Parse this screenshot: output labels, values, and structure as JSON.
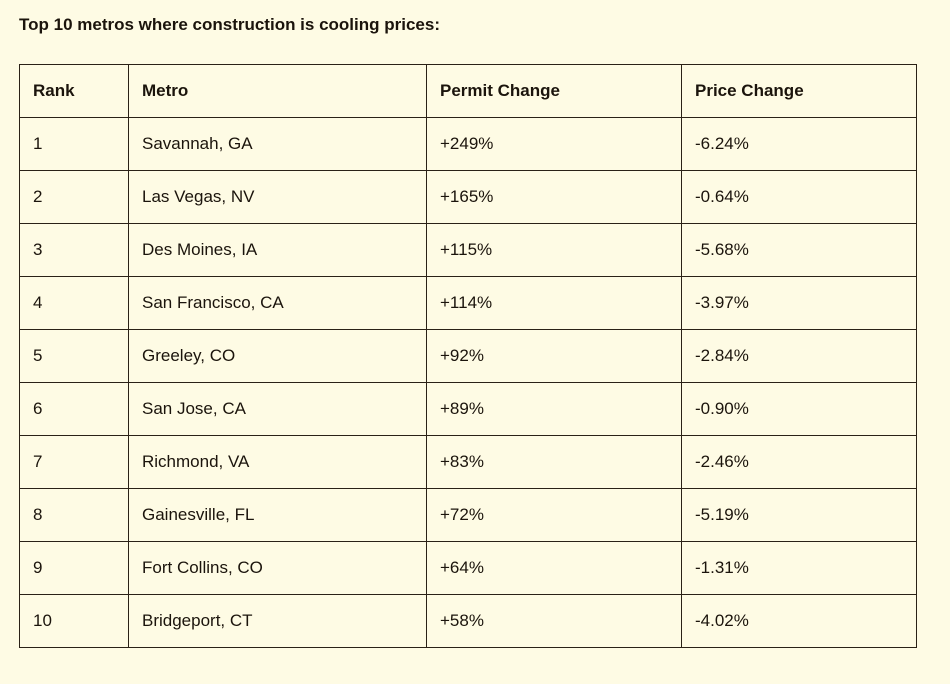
{
  "title": "Top 10 metros where construction is cooling prices:",
  "table": {
    "headers": [
      "Rank",
      "Metro",
      "Permit Change",
      "Price Change"
    ],
    "rows": [
      [
        "1",
        "Savannah, GA",
        "+249%",
        "-6.24%"
      ],
      [
        "2",
        "Las Vegas, NV",
        "+165%",
        "-0.64%"
      ],
      [
        "3",
        "Des Moines, IA",
        "+115%",
        "-5.68%"
      ],
      [
        "4",
        "San Francisco, CA",
        "+114%",
        "-3.97%"
      ],
      [
        "5",
        "Greeley, CO",
        "+92%",
        "-2.84%"
      ],
      [
        "6",
        "San Jose, CA",
        "+89%",
        "-0.90%"
      ],
      [
        "7",
        "Richmond, VA",
        "+83%",
        "-2.46%"
      ],
      [
        "8",
        "Gainesville, FL",
        "+72%",
        "-5.19%"
      ],
      [
        "9",
        "Fort Collins, CO",
        "+64%",
        "-1.31%"
      ],
      [
        "10",
        "Bridgeport, CT",
        "+58%",
        "-4.02%"
      ]
    ]
  },
  "colors": {
    "background": "#fefbe4",
    "text": "#1b140c",
    "border": "#2a2116"
  }
}
